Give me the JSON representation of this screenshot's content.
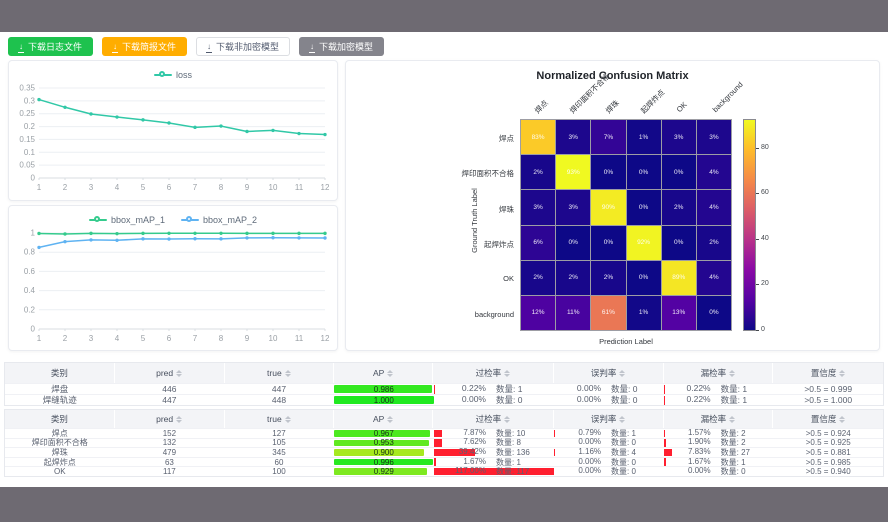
{
  "colors": {
    "page_frame": "#6e6a72",
    "button_success": "#1ec24e",
    "button_warning": "#ffad00",
    "button_gray": "#84848c",
    "loss_series": "#31c8a7",
    "map1_series": "#35cb8d",
    "map2_series": "#5fb3f2",
    "rate_bar_red": "#ff1f2f"
  },
  "toolbar": {
    "buttons": [
      {
        "label": "下载日志文件",
        "type": "success"
      },
      {
        "label": "下载简报文件",
        "type": "warning"
      },
      {
        "label": "下载非加密模型",
        "type": "plain"
      },
      {
        "label": "下载加密模型",
        "type": "gray"
      }
    ],
    "download_icon": "↓"
  },
  "chart_data": [
    {
      "type": "line",
      "title": "loss",
      "legend_position": "top",
      "grid": true,
      "x": [
        1,
        2,
        3,
        4,
        5,
        6,
        7,
        8,
        9,
        10,
        11,
        12
      ],
      "xlabel": "",
      "ylabel": "",
      "ylim": [
        0,
        0.35
      ],
      "yticks": [
        0,
        0.05,
        0.1,
        0.15,
        0.2,
        0.25,
        0.3,
        0.35
      ],
      "series": [
        {
          "name": "loss",
          "color": "#31c8a7",
          "values": [
            0.305,
            0.275,
            0.249,
            0.237,
            0.226,
            0.214,
            0.197,
            0.202,
            0.181,
            0.185,
            0.173,
            0.169
          ]
        }
      ]
    },
    {
      "type": "line",
      "title": "bbox_mAP",
      "legend_position": "top",
      "grid": true,
      "x": [
        1,
        2,
        3,
        4,
        5,
        6,
        7,
        8,
        9,
        10,
        11,
        12
      ],
      "xlabel": "",
      "ylabel": "",
      "ylim": [
        0,
        1
      ],
      "yticks": [
        0,
        0.2,
        0.4,
        0.6,
        0.8,
        1
      ],
      "series": [
        {
          "name": "bbox_mAP_1",
          "color": "#35cb8d",
          "values": [
            0.995,
            0.99,
            0.996,
            0.993,
            0.996,
            0.997,
            0.997,
            0.997,
            0.996,
            0.996,
            0.996,
            0.996
          ]
        },
        {
          "name": "bbox_mAP_2",
          "color": "#5fb3f2",
          "values": [
            0.85,
            0.91,
            0.928,
            0.924,
            0.939,
            0.937,
            0.94,
            0.939,
            0.949,
            0.951,
            0.949,
            0.948
          ]
        }
      ]
    },
    {
      "type": "heatmap",
      "title": "Normalized Confusion Matrix",
      "xlabel": "Prediction Label",
      "ylabel": "Ground Truth Label",
      "labels": [
        "焊点",
        "焊印面积不合格",
        "焊珠",
        "起焊炸点",
        "OK",
        "background"
      ],
      "values_percent": [
        [
          83,
          3,
          7,
          1,
          3,
          3
        ],
        [
          2,
          93,
          0,
          0,
          0,
          4
        ],
        [
          3,
          3,
          90,
          0,
          2,
          4
        ],
        [
          6,
          0,
          0,
          92,
          0,
          2
        ],
        [
          2,
          2,
          2,
          0,
          89,
          4
        ],
        [
          12,
          11,
          61,
          1,
          13,
          0
        ]
      ],
      "colormap": "plasma",
      "vmax": 93,
      "colorbar_ticks": [
        0,
        20,
        40,
        60,
        80
      ],
      "cell_value_suffix": "%"
    }
  ],
  "tables": [
    {
      "headers": [
        {
          "label": "类别",
          "sortable": false
        },
        {
          "label": "pred",
          "sortable": true
        },
        {
          "label": "true",
          "sortable": true
        },
        {
          "label": "AP",
          "sortable": true
        },
        {
          "label": "过检率",
          "sortable": true
        },
        {
          "label": "误判率",
          "sortable": true
        },
        {
          "label": "漏检率",
          "sortable": true
        },
        {
          "label": "置信度",
          "sortable": true
        }
      ],
      "count_prefix": "数量:",
      "rows": [
        {
          "class": "焊盘",
          "pred": "446",
          "true": "447",
          "ap": "0.986",
          "over": {
            "pct": 0.22,
            "text": "0.22%",
            "count": "数量: 1"
          },
          "mis": {
            "pct": 0.0,
            "text": "0.00%",
            "count": "数量: 0"
          },
          "miss": {
            "pct": 0.22,
            "text": "0.22%",
            "count": "数量: 1"
          },
          "conf": ">0.5 = 0.999"
        },
        {
          "class": "焊缝轨迹",
          "pred": "447",
          "true": "448",
          "ap": "1.000",
          "over": {
            "pct": 0.0,
            "text": "0.00%",
            "count": "数量: 0"
          },
          "mis": {
            "pct": 0.0,
            "text": "0.00%",
            "count": "数量: 0"
          },
          "miss": {
            "pct": 0.22,
            "text": "0.22%",
            "count": "数量: 1"
          },
          "conf": ">0.5 = 1.000"
        }
      ]
    },
    {
      "headers": [
        {
          "label": "类别",
          "sortable": false
        },
        {
          "label": "pred",
          "sortable": true
        },
        {
          "label": "true",
          "sortable": true
        },
        {
          "label": "AP",
          "sortable": true
        },
        {
          "label": "过检率",
          "sortable": true
        },
        {
          "label": "误判率",
          "sortable": true
        },
        {
          "label": "漏检率",
          "sortable": true
        },
        {
          "label": "置信度",
          "sortable": true
        }
      ],
      "count_prefix": "数量:",
      "rows": [
        {
          "class": "焊点",
          "pred": "152",
          "true": "127",
          "ap": "0.967",
          "over": {
            "pct": 7.87,
            "text": "7.87%",
            "count": "数量: 10"
          },
          "mis": {
            "pct": 0.79,
            "text": "0.79%",
            "count": "数量: 1"
          },
          "miss": {
            "pct": 1.57,
            "text": "1.57%",
            "count": "数量: 2"
          },
          "conf": ">0.5 = 0.924"
        },
        {
          "class": "焊印面积不合格",
          "pred": "132",
          "true": "105",
          "ap": "0.953",
          "over": {
            "pct": 7.62,
            "text": "7.62%",
            "count": "数量: 8"
          },
          "mis": {
            "pct": 0.0,
            "text": "0.00%",
            "count": "数量: 0"
          },
          "miss": {
            "pct": 1.9,
            "text": "1.90%",
            "count": "数量: 2"
          },
          "conf": ">0.5 = 0.925"
        },
        {
          "class": "焊珠",
          "pred": "479",
          "true": "345",
          "ap": "0.900",
          "over": {
            "pct": 39.42,
            "text": "39.42%",
            "count": "数量: 136"
          },
          "mis": {
            "pct": 1.16,
            "text": "1.16%",
            "count": "数量: 4"
          },
          "miss": {
            "pct": 7.83,
            "text": "7.83%",
            "count": "数量: 27"
          },
          "conf": ">0.5 = 0.881"
        },
        {
          "class": "起焊炸点",
          "pred": "63",
          "true": "60",
          "ap": "0.996",
          "over": {
            "pct": 1.67,
            "text": "1.67%",
            "count": "数量: 1"
          },
          "mis": {
            "pct": 0.0,
            "text": "0.00%",
            "count": "数量: 0"
          },
          "miss": {
            "pct": 1.67,
            "text": "1.67%",
            "count": "数量: 1"
          },
          "conf": ">0.5 = 0.985"
        },
        {
          "class": "OK",
          "pred": "117",
          "true": "100",
          "ap": "0.929",
          "over": {
            "pct": 117.0,
            "text": "117.00%",
            "count": "数量: 117"
          },
          "mis": {
            "pct": 0.0,
            "text": "0.00%",
            "count": "数量: 0"
          },
          "miss": {
            "pct": 0.0,
            "text": "0.00%",
            "count": "数量: 0"
          },
          "conf": ">0.5 = 0.940"
        }
      ]
    }
  ]
}
